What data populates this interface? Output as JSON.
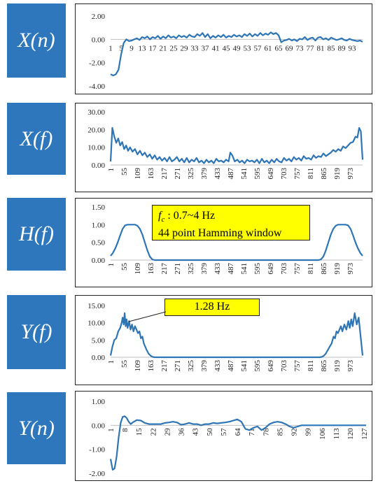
{
  "charts": [
    {
      "id": "xn",
      "label": "X(n)"
    },
    {
      "id": "xf",
      "label": "X(f)"
    },
    {
      "id": "hf",
      "label": "H(f)"
    },
    {
      "id": "yf",
      "label": "Y(f)"
    },
    {
      "id": "yn",
      "label": "Y(n)"
    }
  ],
  "annotations": {
    "hf": {
      "line1_sym": "f",
      "line1_sub": "c",
      "line1_rest": " : 0.7~4 Hz",
      "line2": "44 point Hamming window"
    },
    "yf": {
      "text": "1.28 Hz"
    }
  },
  "colors": {
    "series": "#2e75b6",
    "label_bg": "#2f77bd",
    "callout_bg": "#ffff00"
  },
  "chart_data": [
    {
      "type": "line",
      "name": "X(n)",
      "ylim": [
        -4,
        2
      ],
      "yticks": [
        "2.00",
        "0.00",
        "-2.00",
        "-4.00"
      ],
      "x_start": 1,
      "x_end": 97,
      "xtick_labels": [
        "1",
        "5",
        "9",
        "13",
        "17",
        "21",
        "25",
        "29",
        "33",
        "37",
        "41",
        "45",
        "49",
        "53",
        "57",
        "61",
        "65",
        "69",
        "73",
        "77",
        "81",
        "85",
        "89",
        "93"
      ],
      "xtick_positions": [
        1,
        5,
        9,
        13,
        17,
        21,
        25,
        29,
        33,
        37,
        41,
        45,
        49,
        53,
        57,
        61,
        65,
        69,
        73,
        77,
        81,
        85,
        89,
        93
      ],
      "x": [
        1,
        2,
        3,
        4,
        5,
        6,
        7,
        8,
        9,
        10,
        11,
        12,
        13,
        14,
        15,
        16,
        17,
        18,
        19,
        20,
        21,
        22,
        23,
        24,
        25,
        26,
        27,
        28,
        29,
        30,
        31,
        32,
        33,
        34,
        35,
        36,
        37,
        38,
        39,
        40,
        41,
        42,
        43,
        44,
        45,
        46,
        47,
        48,
        49,
        50,
        51,
        52,
        53,
        54,
        55,
        56,
        57,
        58,
        59,
        60,
        61,
        62,
        63,
        64,
        65,
        66,
        67,
        68,
        69,
        70,
        71,
        72,
        73,
        74,
        75,
        76,
        77,
        78,
        79,
        80,
        81,
        82,
        83,
        84,
        85,
        86,
        87,
        88,
        89,
        90,
        91,
        92,
        93,
        94,
        95,
        96,
        97
      ],
      "y": [
        -3.0,
        -3.1,
        -3.0,
        -2.6,
        -1.3,
        -0.3,
        0.0,
        -0.15,
        -0.1,
        0.0,
        0.1,
        -0.05,
        0.2,
        0.1,
        0.25,
        0.0,
        0.2,
        0.1,
        0.3,
        0.05,
        0.25,
        0.1,
        0.35,
        0.15,
        0.25,
        0.1,
        0.35,
        0.2,
        0.3,
        0.15,
        0.4,
        0.25,
        0.2,
        0.45,
        0.3,
        0.55,
        0.2,
        0.45,
        0.1,
        0.3,
        0.15,
        0.35,
        0.2,
        0.4,
        0.15,
        0.3,
        0.2,
        0.4,
        0.25,
        0.35,
        0.2,
        0.45,
        0.3,
        0.5,
        0.25,
        0.45,
        0.3,
        0.55,
        0.35,
        0.5,
        0.4,
        0.6,
        0.45,
        0.55,
        0.35,
        -0.25,
        -0.1,
        -0.05,
        0.05,
        -0.1,
        0.0,
        -0.15,
        0.05,
        0.0,
        0.2,
        -0.05,
        0.1,
        0.15,
        -0.1,
        0.15,
        0.2,
        0.0,
        0.1,
        -0.05,
        0.15,
        0.05,
        -0.05,
        0.0,
        0.1,
        -0.05,
        -0.1,
        0.05,
        -0.05,
        -0.1,
        -0.15,
        -0.1,
        -0.2
      ]
    },
    {
      "type": "line",
      "name": "X(f)",
      "ylim": [
        0,
        30
      ],
      "yticks": [
        "30.00",
        "20.00",
        "10.00",
        "0.00"
      ],
      "x_start": 1,
      "x_end": 1024,
      "xtick_labels": [
        "1",
        "55",
        "109",
        "163",
        "217",
        "271",
        "325",
        "379",
        "433",
        "487",
        "541",
        "595",
        "649",
        "703",
        "757",
        "811",
        "865",
        "919",
        "973"
      ],
      "xtick_positions": [
        1,
        55,
        109,
        163,
        217,
        271,
        325,
        379,
        433,
        487,
        541,
        595,
        649,
        703,
        757,
        811,
        865,
        919,
        973
      ],
      "x": [
        1,
        8,
        16,
        24,
        32,
        40,
        48,
        56,
        64,
        72,
        80,
        90,
        100,
        110,
        120,
        130,
        140,
        150,
        160,
        170,
        180,
        190,
        200,
        210,
        220,
        230,
        240,
        250,
        260,
        270,
        280,
        290,
        300,
        310,
        320,
        330,
        340,
        350,
        360,
        370,
        380,
        390,
        400,
        410,
        420,
        430,
        440,
        450,
        460,
        470,
        480,
        487,
        495,
        505,
        515,
        525,
        535,
        545,
        555,
        565,
        575,
        585,
        595,
        605,
        615,
        625,
        635,
        645,
        655,
        665,
        675,
        685,
        695,
        705,
        715,
        725,
        735,
        745,
        755,
        765,
        775,
        785,
        795,
        805,
        815,
        825,
        835,
        845,
        855,
        865,
        875,
        885,
        895,
        905,
        915,
        925,
        935,
        945,
        955,
        965,
        975,
        985,
        995,
        1003,
        1010,
        1017,
        1024
      ],
      "y": [
        2.0,
        21.0,
        16.0,
        12.5,
        15.0,
        11.0,
        13.0,
        9.0,
        11.0,
        8.0,
        10.0,
        7.5,
        9.0,
        6.0,
        8.0,
        5.5,
        7.0,
        4.5,
        6.0,
        3.5,
        5.5,
        3.0,
        4.5,
        2.5,
        4.0,
        2.0,
        4.5,
        2.0,
        3.0,
        4.5,
        2.0,
        3.5,
        1.5,
        4.0,
        1.5,
        3.0,
        2.0,
        4.0,
        1.5,
        2.5,
        1.0,
        3.0,
        1.5,
        2.5,
        1.0,
        3.5,
        2.0,
        2.5,
        1.5,
        3.0,
        2.0,
        7.0,
        5.5,
        2.0,
        3.0,
        1.5,
        2.5,
        1.0,
        3.0,
        2.0,
        2.5,
        1.5,
        3.0,
        1.0,
        3.5,
        1.5,
        2.5,
        1.0,
        3.0,
        1.5,
        3.5,
        2.0,
        1.5,
        4.0,
        2.5,
        3.5,
        2.0,
        4.5,
        3.0,
        4.0,
        2.5,
        5.0,
        3.5,
        4.0,
        3.0,
        5.5,
        4.0,
        5.0,
        4.5,
        6.5,
        5.0,
        6.0,
        7.0,
        8.5,
        7.5,
        9.0,
        8.0,
        10.5,
        9.5,
        11.0,
        12.5,
        13.0,
        16.0,
        15.5,
        21.0,
        19.0,
        3.0
      ]
    },
    {
      "type": "line",
      "name": "H(f)",
      "ylim": [
        0,
        1.5
      ],
      "yticks": [
        "1.50",
        "1.00",
        "0.50",
        "0.00"
      ],
      "x_start": 1,
      "x_end": 1024,
      "xtick_labels": [
        "1",
        "55",
        "109",
        "163",
        "217",
        "271",
        "325",
        "379",
        "433",
        "487",
        "541",
        "595",
        "649",
        "703",
        "757",
        "811",
        "865",
        "919",
        "973"
      ],
      "xtick_positions": [
        1,
        55,
        109,
        163,
        217,
        271,
        325,
        379,
        433,
        487,
        541,
        595,
        649,
        703,
        757,
        811,
        865,
        919,
        973
      ],
      "x": [
        1,
        10,
        20,
        30,
        40,
        50,
        60,
        70,
        80,
        90,
        100,
        110,
        120,
        130,
        140,
        150,
        160,
        170,
        180,
        845,
        855,
        865,
        875,
        885,
        895,
        905,
        915,
        925,
        935,
        945,
        955,
        965,
        975,
        985,
        995,
        1005,
        1015,
        1024
      ],
      "y": [
        0.12,
        0.2,
        0.33,
        0.5,
        0.7,
        0.88,
        0.98,
        1.0,
        1.0,
        1.0,
        1.0,
        0.97,
        0.88,
        0.72,
        0.5,
        0.28,
        0.1,
        0.02,
        0.0,
        0.0,
        0.02,
        0.1,
        0.28,
        0.5,
        0.72,
        0.88,
        0.97,
        1.0,
        1.0,
        1.0,
        1.0,
        0.98,
        0.88,
        0.7,
        0.5,
        0.33,
        0.2,
        0.12
      ]
    },
    {
      "type": "line",
      "name": "Y(f)",
      "ylim": [
        0,
        15
      ],
      "yticks": [
        "15.00",
        "10.00",
        "5.00",
        "0.00"
      ],
      "x_start": 1,
      "x_end": 1024,
      "xtick_labels": [
        "1",
        "55",
        "109",
        "163",
        "217",
        "271",
        "325",
        "379",
        "433",
        "487",
        "541",
        "595",
        "649",
        "703",
        "757",
        "811",
        "865",
        "919",
        "973"
      ],
      "xtick_positions": [
        1,
        55,
        109,
        163,
        217,
        271,
        325,
        379,
        433,
        487,
        541,
        595,
        649,
        703,
        757,
        811,
        865,
        919,
        973
      ],
      "x": [
        1,
        8,
        16,
        24,
        32,
        40,
        46,
        50,
        54,
        58,
        62,
        66,
        70,
        76,
        82,
        88,
        94,
        100,
        106,
        112,
        118,
        124,
        130,
        136,
        142,
        148,
        156,
        164,
        172,
        180,
        850,
        858,
        866,
        874,
        882,
        890,
        898,
        906,
        912,
        918,
        924,
        930,
        936,
        942,
        950,
        958,
        966,
        972,
        978,
        984,
        992,
        1000,
        1008,
        1016,
        1024
      ],
      "y": [
        0.5,
        3.0,
        5.0,
        5.5,
        7.5,
        8.5,
        10.0,
        11.5,
        9.5,
        12.8,
        9.0,
        11.0,
        8.5,
        10.5,
        8.0,
        9.5,
        7.5,
        9.0,
        8.0,
        7.0,
        7.5,
        5.5,
        6.0,
        4.0,
        3.0,
        2.0,
        1.0,
        0.4,
        0.1,
        0.0,
        0.0,
        0.1,
        0.4,
        1.0,
        2.0,
        3.0,
        4.0,
        6.0,
        5.5,
        7.5,
        7.0,
        8.0,
        9.0,
        7.5,
        9.5,
        8.0,
        10.5,
        8.5,
        11.0,
        9.0,
        12.8,
        9.5,
        11.5,
        6.0,
        0.5
      ]
    },
    {
      "type": "line",
      "name": "Y(n)",
      "ylim": [
        -2,
        1
      ],
      "yticks": [
        "1.00",
        "0.00",
        "-1.00",
        "-2.00"
      ],
      "x_start": 1,
      "x_end": 128,
      "xtick_labels": [
        "1",
        "8",
        "15",
        "22",
        "29",
        "36",
        "43",
        "50",
        "57",
        "64",
        "71",
        "78",
        "85",
        "92",
        "99",
        "106",
        "113",
        "120",
        "127"
      ],
      "xtick_positions": [
        1,
        8,
        15,
        22,
        29,
        36,
        43,
        50,
        57,
        64,
        71,
        78,
        85,
        92,
        99,
        106,
        113,
        120,
        127
      ],
      "x": [
        1,
        2,
        3,
        4,
        5,
        6,
        7,
        8,
        9,
        10,
        11,
        12,
        14,
        16,
        18,
        20,
        22,
        24,
        26,
        28,
        30,
        32,
        34,
        36,
        38,
        40,
        42,
        44,
        46,
        48,
        50,
        52,
        54,
        56,
        58,
        60,
        62,
        64,
        66,
        68,
        70,
        72,
        74,
        76,
        78,
        80,
        82,
        84,
        86,
        88,
        90,
        92,
        94,
        96,
        98,
        100,
        104,
        108,
        112,
        116,
        120,
        124,
        128
      ],
      "y": [
        -1.4,
        -1.85,
        -1.8,
        -1.3,
        -0.5,
        0.1,
        0.35,
        0.38,
        0.3,
        0.15,
        0.05,
        0.12,
        0.22,
        0.2,
        0.1,
        0.05,
        0.05,
        0.05,
        0.05,
        0.1,
        0.12,
        0.15,
        0.12,
        0.02,
        0.05,
        0.1,
        0.05,
        0.05,
        0.0,
        0.05,
        0.05,
        0.1,
        0.08,
        0.1,
        0.12,
        0.15,
        0.2,
        0.25,
        0.15,
        -0.15,
        -0.2,
        -0.1,
        -0.05,
        -0.2,
        -0.1,
        0.05,
        0.12,
        0.15,
        0.12,
        0.05,
        -0.05,
        -0.1,
        -0.05,
        0.0,
        0.0,
        0.0,
        0.0,
        0.0,
        0.0,
        0.0,
        0.0,
        0.0,
        0.0
      ]
    }
  ]
}
